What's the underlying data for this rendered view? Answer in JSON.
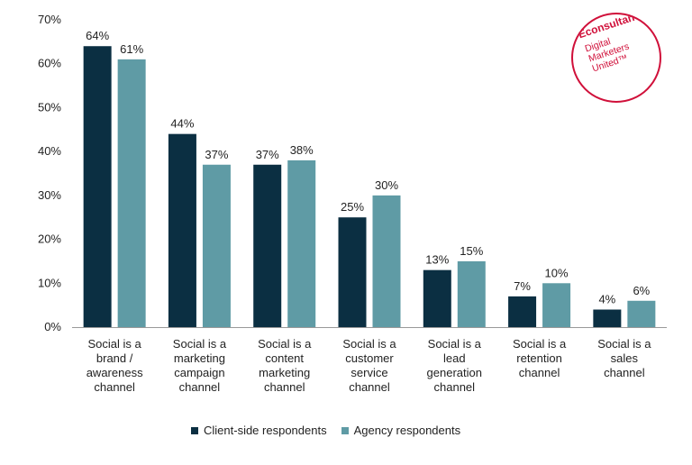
{
  "logo": {
    "brand": "Econsultancy",
    "line1": "Digital",
    "line2": "Marketers",
    "line3": "United™"
  },
  "chart_data": {
    "type": "bar",
    "categories": [
      [
        "Social is a",
        "brand /",
        "awareness",
        "channel"
      ],
      [
        "Social is a",
        "marketing",
        "campaign",
        "channel"
      ],
      [
        "Social is a",
        "content",
        "marketing",
        "channel"
      ],
      [
        "Social is a",
        "customer",
        "service",
        "channel"
      ],
      [
        "Social is a",
        "lead",
        "generation",
        "channel"
      ],
      [
        "Social is a",
        "retention",
        "channel"
      ],
      [
        "Social is a",
        "sales",
        "channel"
      ]
    ],
    "series": [
      {
        "name": "Client-side respondents",
        "color": "#0b2f42",
        "values": [
          64,
          44,
          37,
          25,
          13,
          7,
          4
        ],
        "labels": [
          "64%",
          "44%",
          "37%",
          "25%",
          "13%",
          "7%",
          "4%"
        ]
      },
      {
        "name": "Agency respondents",
        "color": "#5f9ba5",
        "values": [
          61,
          37,
          38,
          30,
          15,
          10,
          6
        ],
        "labels": [
          "61%",
          "37%",
          "38%",
          "30%",
          "15%",
          "10%",
          "6%"
        ]
      }
    ],
    "ylim": [
      0,
      70
    ],
    "yticks": [
      0,
      10,
      20,
      30,
      40,
      50,
      60,
      70
    ],
    "ytick_labels": [
      "0%",
      "10%",
      "20%",
      "30%",
      "40%",
      "50%",
      "60%",
      "70%"
    ],
    "grid": false,
    "legend_position": "bottom"
  }
}
